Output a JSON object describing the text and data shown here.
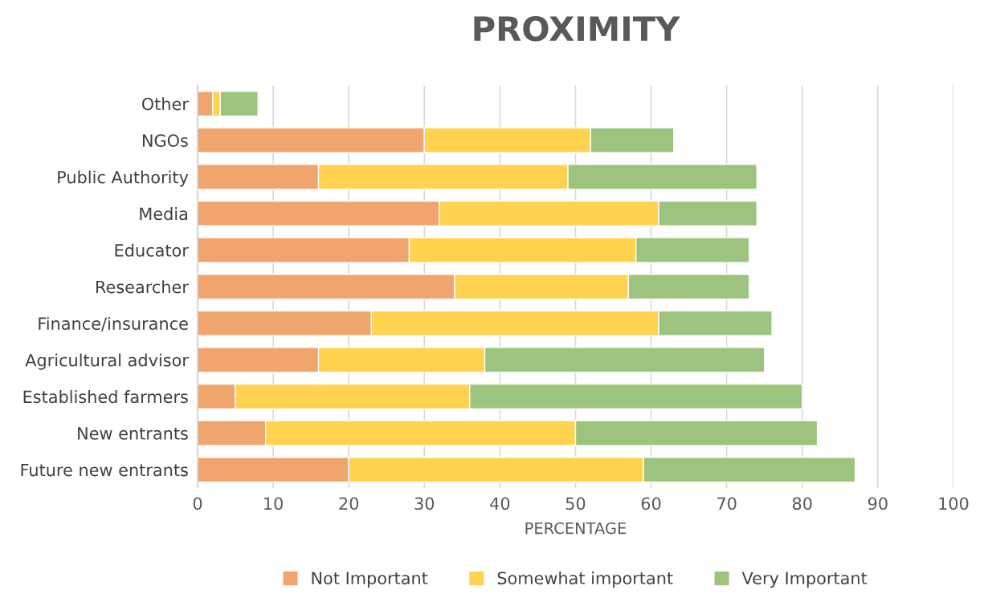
{
  "chart_data": {
    "type": "bar",
    "orientation": "horizontal",
    "stacked": true,
    "title": "PROXIMITY",
    "xlabel": "PERCENTAGE",
    "categories": [
      "Other",
      "NGOs",
      "Public Authority",
      "Media",
      "Educator",
      "Researcher",
      "Finance/insurance",
      "Agricultural advisor",
      "Established farmers",
      "New entrants",
      "Future new entrants"
    ],
    "series": [
      {
        "name": "Not Important",
        "color": "#f0a46e",
        "values": [
          2,
          30,
          16,
          32,
          28,
          34,
          23,
          16,
          5,
          9,
          20
        ]
      },
      {
        "name": "Somewhat important",
        "color": "#ffd34f",
        "values": [
          1,
          22,
          33,
          29,
          30,
          23,
          38,
          22,
          31,
          41,
          39
        ]
      },
      {
        "name": "Very Important",
        "color": "#9dc47f",
        "values": [
          5,
          11,
          25,
          13,
          15,
          16,
          15,
          37,
          44,
          32,
          28
        ]
      }
    ],
    "xlim": [
      0,
      100
    ],
    "xticks": [
      0,
      10,
      20,
      30,
      40,
      50,
      60,
      70,
      80,
      90,
      100
    ],
    "grid": "x",
    "legend": "bottom"
  }
}
